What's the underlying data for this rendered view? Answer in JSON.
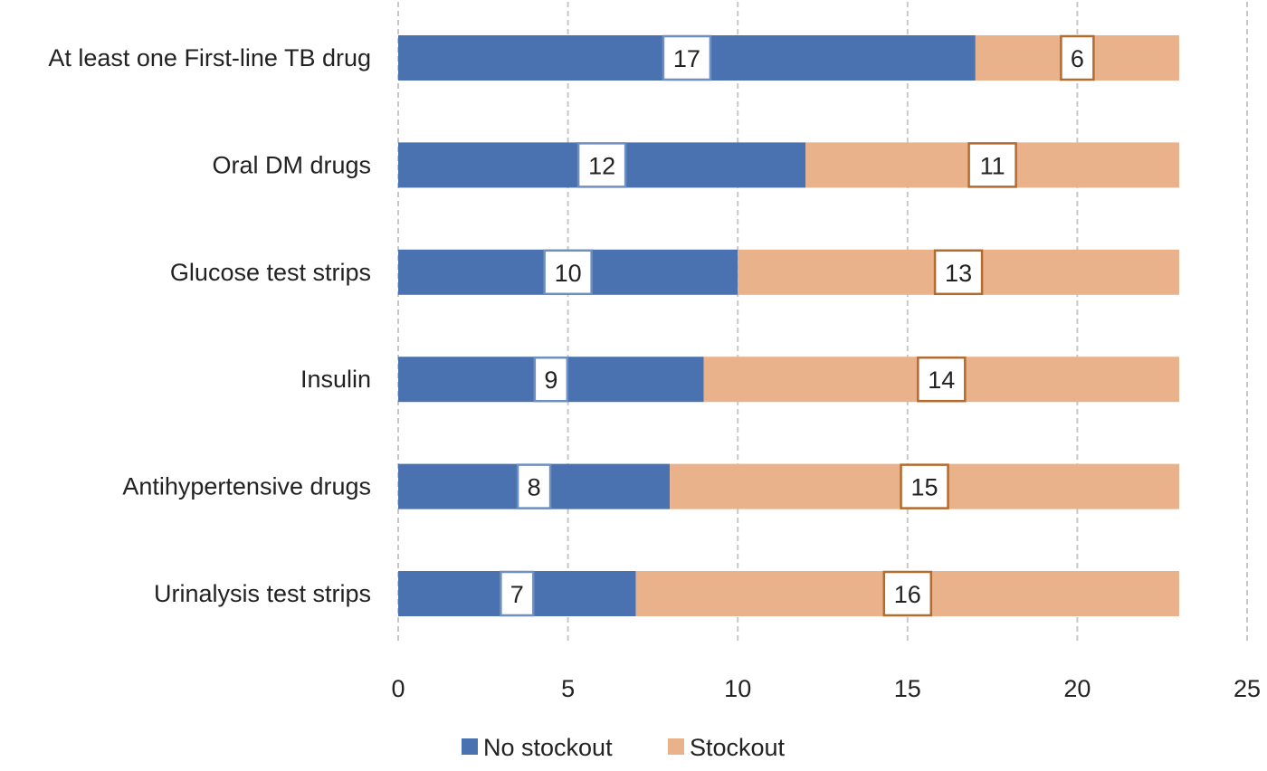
{
  "chart_data": {
    "type": "bar",
    "orientation": "horizontal",
    "stacked": true,
    "categories": [
      "At least one First-line TB drug",
      "Oral DM drugs",
      "Glucose test strips",
      "Insulin",
      "Antihypertensive drugs",
      "Urinalysis test strips"
    ],
    "series": [
      {
        "name": "No stockout",
        "color": "#4a72b0",
        "label_border": "#6f8fbf",
        "values": [
          17,
          12,
          10,
          9,
          8,
          7
        ]
      },
      {
        "name": "Stockout",
        "color": "#e9b28b",
        "label_border": "#b36b2e",
        "values": [
          6,
          11,
          13,
          14,
          15,
          16
        ]
      }
    ],
    "xlim": [
      0,
      25
    ],
    "xticks": [
      0,
      5,
      10,
      15,
      20,
      25
    ],
    "grid": true,
    "legend_position": "bottom",
    "title": "",
    "xlabel": "",
    "ylabel": ""
  }
}
